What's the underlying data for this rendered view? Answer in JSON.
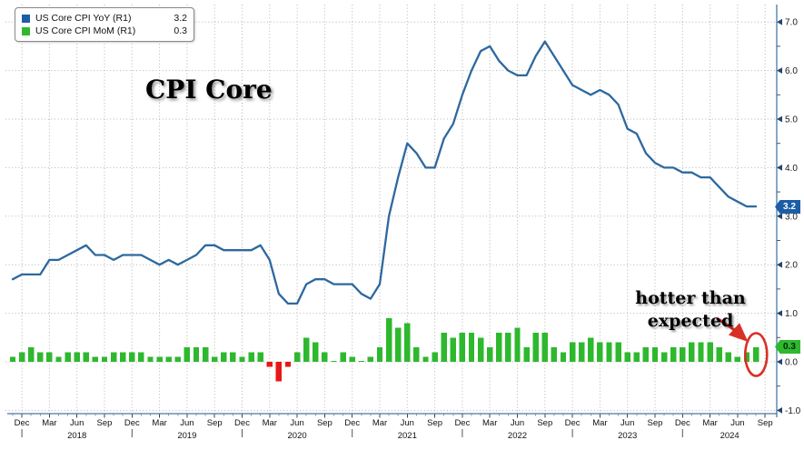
{
  "title": "CPI Core",
  "legend": {
    "items": [
      {
        "label": "US Core CPI YoY (R1)",
        "value": "3.2",
        "swatch_color": "#1b5ea6"
      },
      {
        "label": "US Core CPI MoM (R1)",
        "value": "0.3",
        "swatch_color": "#2eb82e"
      }
    ]
  },
  "annotation": {
    "line1": "hotter than",
    "line2": "expected",
    "color": "#d93025"
  },
  "badges": {
    "yoy": {
      "text": "3.2",
      "bg": "#1b5ea6",
      "fg": "#ffffff"
    },
    "mom": {
      "text": "0.3",
      "bg": "#2eb82e",
      "fg": "#06240a"
    }
  },
  "chart_data": {
    "type": "line+bar",
    "start_month": "2017-11",
    "end_month": "2024-08",
    "x_tick_labels": [
      "Dec",
      "Mar",
      "Jun",
      "Sep",
      "Dec",
      "Mar",
      "Jun",
      "Sep",
      "Dec",
      "Mar",
      "Jun",
      "Sep",
      "Dec",
      "Mar",
      "Jun",
      "Sep",
      "Dec",
      "Mar",
      "Jun",
      "Sep",
      "Dec",
      "Mar",
      "Jun",
      "Sep",
      "Dec",
      "Mar",
      "Jun",
      "Sep"
    ],
    "year_labels": [
      "2018",
      "2019",
      "2020",
      "2021",
      "2022",
      "2023",
      "2024"
    ],
    "y_axis": {
      "side": "right",
      "tick_labels": [
        "7.0",
        "6.0",
        "5.0",
        "4.0",
        "3.0",
        "2.0",
        "1.0",
        "0.0",
        "-1.0"
      ],
      "tick_values": [
        7,
        6,
        5,
        4,
        3,
        2,
        1,
        0,
        -1
      ],
      "ylim": [
        -1.35,
        7.35
      ],
      "grid": true
    },
    "series": [
      {
        "name": "US Core CPI YoY (R1)",
        "type": "line",
        "color": "#2e689f",
        "last_value": 3.2,
        "values": [
          1.7,
          1.8,
          1.8,
          1.8,
          2.1,
          2.1,
          2.2,
          2.3,
          2.4,
          2.2,
          2.2,
          2.1,
          2.2,
          2.2,
          2.2,
          2.1,
          2.0,
          2.1,
          2.0,
          2.1,
          2.2,
          2.4,
          2.4,
          2.3,
          2.3,
          2.3,
          2.3,
          2.4,
          2.1,
          1.4,
          1.2,
          1.2,
          1.6,
          1.7,
          1.7,
          1.6,
          1.6,
          1.6,
          1.4,
          1.3,
          1.6,
          3.0,
          3.8,
          4.5,
          4.3,
          4.0,
          4.0,
          4.6,
          4.9,
          5.5,
          6.0,
          6.4,
          6.5,
          6.2,
          6.0,
          5.9,
          5.9,
          6.3,
          6.6,
          6.3,
          6.0,
          5.7,
          5.6,
          5.5,
          5.6,
          5.5,
          5.3,
          4.8,
          4.7,
          4.3,
          4.1,
          4.0,
          4.0,
          3.9,
          3.9,
          3.8,
          3.8,
          3.6,
          3.4,
          3.3,
          3.2,
          3.2
        ]
      },
      {
        "name": "US Core CPI MoM (R1)",
        "type": "bar",
        "color": "#2eb82e",
        "negative_color": "#e81717",
        "last_value": 0.3,
        "values": [
          0.1,
          0.2,
          0.3,
          0.2,
          0.2,
          0.1,
          0.2,
          0.2,
          0.2,
          0.1,
          0.1,
          0.2,
          0.2,
          0.2,
          0.2,
          0.1,
          0.1,
          0.1,
          0.1,
          0.3,
          0.3,
          0.3,
          0.1,
          0.2,
          0.2,
          0.1,
          0.2,
          0.2,
          -0.1,
          -0.4,
          -0.1,
          0.2,
          0.5,
          0.4,
          0.2,
          0.0,
          0.2,
          0.1,
          0.0,
          0.1,
          0.3,
          0.9,
          0.7,
          0.8,
          0.3,
          0.1,
          0.2,
          0.6,
          0.5,
          0.6,
          0.6,
          0.5,
          0.3,
          0.6,
          0.6,
          0.7,
          0.3,
          0.6,
          0.6,
          0.3,
          0.2,
          0.4,
          0.4,
          0.5,
          0.4,
          0.4,
          0.4,
          0.2,
          0.2,
          0.3,
          0.3,
          0.2,
          0.3,
          0.3,
          0.4,
          0.4,
          0.4,
          0.3,
          0.2,
          0.1,
          0.2,
          0.3
        ]
      }
    ]
  }
}
